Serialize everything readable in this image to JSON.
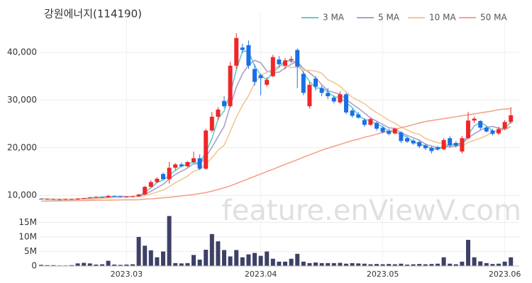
{
  "watermark": "feature.enViewV.com",
  "chart_data": [
    {
      "type": "candlestick",
      "title": "강원에너지(114190)",
      "categories": [
        null,
        null,
        null,
        null,
        null,
        null,
        null,
        null,
        null,
        null,
        null,
        null,
        null,
        null,
        "2023.03",
        null,
        null,
        null,
        null,
        null,
        null,
        null,
        null,
        null,
        null,
        null,
        null,
        null,
        null,
        null,
        null,
        null,
        null,
        null,
        null,
        null,
        "2023.04",
        null,
        null,
        null,
        null,
        null,
        null,
        null,
        null,
        null,
        null,
        null,
        null,
        null,
        null,
        null,
        null,
        null,
        null,
        null,
        "2023.05",
        null,
        null,
        null,
        null,
        null,
        null,
        null,
        null,
        null,
        null,
        null,
        null,
        null,
        null,
        null,
        null,
        null,
        null,
        null,
        "2023.06",
        null
      ],
      "open": [
        9300,
        9250,
        9200,
        9150,
        9100,
        9250,
        9150,
        9350,
        9450,
        9600,
        9700,
        9600,
        9900,
        9800,
        9700,
        9750,
        9800,
        10200,
        11800,
        12800,
        14500,
        13400,
        15800,
        16500,
        16100,
        17000,
        17800,
        15600,
        23600,
        26500,
        29800,
        28700,
        37200,
        41000,
        41500,
        36500,
        35200,
        33200,
        35000,
        38500,
        37200,
        38300,
        40500,
        35500,
        28700,
        34500,
        32500,
        31500,
        30500,
        29500,
        31200,
        27800,
        27000,
        25800,
        24800,
        25200,
        24200,
        23500,
        23000,
        23200,
        22000,
        21500,
        21200,
        20500,
        20000,
        20100,
        19700,
        22000,
        21000,
        19200,
        22000,
        25700,
        25600,
        24200,
        23600,
        23000,
        24000,
        25400
      ],
      "high": [
        9400,
        9350,
        9300,
        9250,
        9300,
        9300,
        9400,
        9500,
        9700,
        9800,
        9800,
        10100,
        10000,
        9900,
        9850,
        9900,
        10300,
        12000,
        13200,
        13800,
        14800,
        17000,
        16800,
        16900,
        17200,
        19200,
        18600,
        24000,
        27500,
        28500,
        30800,
        38000,
        44000,
        41800,
        42500,
        37500,
        35500,
        34800,
        39500,
        39200,
        38800,
        39200,
        40800,
        36000,
        33800,
        35000,
        33000,
        32500,
        31000,
        31800,
        31500,
        28200,
        27500,
        26200,
        26300,
        25500,
        24500,
        24000,
        24200,
        23500,
        22300,
        21800,
        21500,
        20800,
        20300,
        20400,
        22000,
        22400,
        21400,
        22500,
        27500,
        26500,
        25800,
        24500,
        24000,
        24400,
        25800,
        28500
      ],
      "low": [
        9200,
        9150,
        9100,
        9050,
        9050,
        9100,
        9100,
        9250,
        9400,
        9500,
        9550,
        9550,
        9700,
        9650,
        9600,
        9650,
        9700,
        10100,
        11600,
        12600,
        13300,
        12500,
        15300,
        15900,
        15900,
        16700,
        15300,
        15400,
        23200,
        25800,
        28300,
        28400,
        36500,
        39800,
        36500,
        33000,
        31000,
        32800,
        34800,
        36800,
        36500,
        37800,
        32500,
        31000,
        28200,
        32000,
        30800,
        30200,
        29300,
        29200,
        27000,
        26300,
        26100,
        24400,
        24600,
        23600,
        23000,
        22600,
        22800,
        21000,
        21000,
        20600,
        19900,
        19500,
        18800,
        19400,
        19500,
        20000,
        20000,
        18800,
        21800,
        25200,
        23800,
        23200,
        22600,
        22700,
        23700,
        25000
      ],
      "close": [
        9250,
        9200,
        9150,
        9100,
        9250,
        9150,
        9350,
        9450,
        9600,
        9700,
        9600,
        9900,
        9800,
        9700,
        9750,
        9800,
        10200,
        11800,
        12800,
        13500,
        13400,
        15800,
        16500,
        16100,
        17000,
        17800,
        15600,
        23600,
        26500,
        28000,
        28700,
        37200,
        43000,
        40500,
        37200,
        33800,
        34600,
        34200,
        39000,
        37500,
        38300,
        38600,
        37000,
        31500,
        33200,
        32800,
        31500,
        30800,
        29700,
        31200,
        27400,
        26700,
        26300,
        24800,
        26000,
        24000,
        23300,
        22900,
        24000,
        21400,
        21300,
        20900,
        20300,
        19900,
        19300,
        19700,
        21600,
        20500,
        20400,
        22000,
        25700,
        26100,
        24200,
        23400,
        22900,
        23900,
        25400,
        26800
      ],
      "series": [
        {
          "name": "3 MA",
          "color": "#5fcdc9",
          "values": [
            9300,
            9250,
            9200,
            9150,
            9170,
            9170,
            9250,
            9320,
            9470,
            9580,
            9630,
            9730,
            9770,
            9800,
            9750,
            9750,
            9920,
            10600,
            11600,
            12700,
            13230,
            14230,
            15230,
            16130,
            16530,
            16970,
            16800,
            19000,
            21900,
            26030,
            27730,
            31300,
            36300,
            40230,
            40230,
            37170,
            35200,
            34200,
            35930,
            36900,
            38270,
            38130,
            37970,
            35700,
            33900,
            32500,
            32500,
            31700,
            30670,
            30570,
            29430,
            28430,
            26800,
            25930,
            25700,
            24930,
            24430,
            23400,
            23400,
            22770,
            22230,
            21200,
            20830,
            20370,
            19830,
            19630,
            20200,
            20600,
            20830,
            20970,
            22700,
            24600,
            25330,
            24570,
            23500,
            23400,
            24070,
            25370
          ]
        },
        {
          "name": "5 MA",
          "color": "#ab9fcb",
          "values": [
            9300,
            9270,
            9230,
            9200,
            9190,
            9170,
            9200,
            9260,
            9360,
            9450,
            9540,
            9650,
            9720,
            9740,
            9750,
            9790,
            9850,
            10250,
            10870,
            11620,
            12340,
            13460,
            14400,
            15060,
            15760,
            16640,
            16600,
            18020,
            20100,
            22300,
            24480,
            28800,
            32680,
            35480,
            37320,
            38340,
            37820,
            36060,
            35760,
            35820,
            36720,
            37520,
            38080,
            36580,
            35720,
            34620,
            33200,
            31960,
            31600,
            31200,
            30120,
            29160,
            28260,
            27280,
            26240,
            25560,
            24880,
            24200,
            24040,
            23120,
            22580,
            22100,
            21580,
            20760,
            20340,
            20020,
            20160,
            20200,
            20300,
            20840,
            22040,
            22940,
            23680,
            24280,
            24460,
            24100,
            23960,
            24480
          ]
        },
        {
          "name": "10 MA",
          "color": "#f3c692",
          "values": [
            9300,
            9280,
            9260,
            9240,
            9220,
            9200,
            9200,
            9220,
            9240,
            9310,
            9370,
            9460,
            9540,
            9600,
            9650,
            9720,
            9790,
            10000,
            10310,
            10710,
            11100,
            11860,
            12640,
            13340,
            14050,
            15050,
            15500,
            16540,
            17930,
            19470,
            20540,
            23410,
            26390,
            28890,
            30900,
            33570,
            35250,
            35770,
            36540,
            37080,
            37270,
            36790,
            36920,
            36200,
            36220,
            36070,
            35640,
            34270,
            33660,
            32910,
            31660,
            30560,
            29930,
            29240,
            28180,
            27360,
            26570,
            25740,
            25140,
            24340,
            23730,
            23150,
            22810,
            21940,
            21460,
            21060,
            20870,
            20480,
            20320,
            20430,
            21100,
            21570,
            21990,
            22560,
            23250,
            23520,
            23820,
            24380
          ]
        },
        {
          "name": "50 MA",
          "color": "#f4a38e",
          "values": [
            8800,
            8820,
            8840,
            8860,
            8880,
            8900,
            8920,
            8940,
            8960,
            8980,
            9000,
            9020,
            9040,
            9060,
            9080,
            9090,
            9100,
            9200,
            9300,
            9400,
            9500,
            9600,
            9750,
            9900,
            10050,
            10200,
            10400,
            10600,
            10900,
            11250,
            11600,
            12000,
            12500,
            13000,
            13500,
            14000,
            14500,
            15000,
            15500,
            16000,
            16500,
            17000,
            17500,
            18000,
            18500,
            19000,
            19500,
            19900,
            20300,
            20700,
            21100,
            21500,
            21800,
            22200,
            22500,
            22850,
            23200,
            23500,
            23850,
            24200,
            24500,
            24850,
            25200,
            25500,
            25700,
            25900,
            26100,
            26300,
            26500,
            26700,
            26900,
            27100,
            27300,
            27500,
            27700,
            28000,
            28100,
            28200
          ]
        }
      ],
      "up_color": "#f0262a",
      "down_color": "#1b6fe6",
      "ylim": [
        8700,
        48300
      ],
      "yticks": [
        {
          "value": 10000,
          "label": "10,000"
        },
        {
          "value": 20000,
          "label": "20,000"
        },
        {
          "value": 30000,
          "label": "30,000"
        },
        {
          "value": 40000,
          "label": "40,000"
        }
      ],
      "grid": true,
      "legend": "top-right"
    },
    {
      "type": "bar",
      "color": "#3e4166",
      "values": [
        400000,
        300000,
        300000,
        200000,
        200000,
        300000,
        900000,
        1100000,
        900000,
        500000,
        600000,
        1800000,
        500000,
        400000,
        500000,
        600000,
        10000000,
        7000000,
        5400000,
        3000000,
        5000000,
        17200000,
        1000000,
        900000,
        1000000,
        3800000,
        2200000,
        5600000,
        11000000,
        8500000,
        5500000,
        3300000,
        5500000,
        3000000,
        4000000,
        4500000,
        3500000,
        5000000,
        2500000,
        1500000,
        1500000,
        2500000,
        4200000,
        1500000,
        1000000,
        1200000,
        1000000,
        1000000,
        1000000,
        1100000,
        800000,
        1000000,
        900000,
        800000,
        600000,
        700000,
        600000,
        700000,
        600000,
        800000,
        500000,
        600000,
        700000,
        600000,
        700000,
        800000,
        3000000,
        800000,
        600000,
        1500000,
        9000000,
        3000000,
        1600000,
        1000000,
        700000,
        800000,
        1500000,
        3000000
      ],
      "ylim": [
        0,
        18500000
      ],
      "yticks": [
        0,
        {
          "value": 5000000,
          "label": "5M"
        },
        {
          "value": 10000000,
          "label": "10M"
        },
        {
          "value": 15000000,
          "label": "15M"
        }
      ],
      "grid": true
    }
  ]
}
